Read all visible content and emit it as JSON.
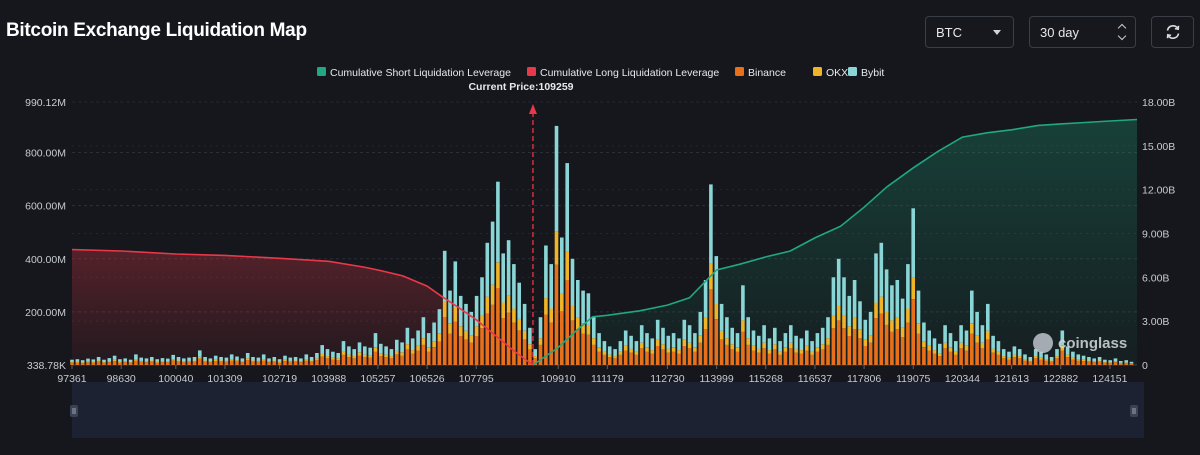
{
  "page": {
    "title": "Bitcoin Exchange Liquidation Map",
    "symbol_select": "BTC",
    "range_select": "30 day",
    "refresh_icon": "refresh-icon",
    "watermark": "coinglass"
  },
  "colors": {
    "short_cum": "#1fa883",
    "long_cum": "#e8394a",
    "binance": "#e8701a",
    "okx": "#f0b429",
    "bybit": "#8ad6d6",
    "background": "#15171c"
  },
  "chart_data": {
    "type": "bar",
    "legend_position": "top-center",
    "legend": [
      {
        "label": "Cumulative Short Liquidation Leverage",
        "color": "#1fa883"
      },
      {
        "label": "Cumulative Long Liquidation Leverage",
        "color": "#e8394a"
      },
      {
        "label": "Binance",
        "color": "#e8701a"
      },
      {
        "label": "OKX",
        "color": "#f0b429"
      },
      {
        "label": "Bybit",
        "color": "#8ad6d6"
      }
    ],
    "current_price_label": "Current Price:109259",
    "current_price": 109259,
    "x_ticks": [
      "97361",
      "98630",
      "100040",
      "101309",
      "102719",
      "103988",
      "105257",
      "106526",
      "107795",
      "109910",
      "111179",
      "112730",
      "113999",
      "115268",
      "116537",
      "117806",
      "119075",
      "120344",
      "121613",
      "122882",
      "124151"
    ],
    "x_range": [
      97361,
      124850
    ],
    "y_left_ticks": [
      "338.78K",
      "200.00M",
      "400.00M",
      "600.00M",
      "800.00M",
      "990.12M"
    ],
    "y_left_tick_values": [
      0.33878,
      200,
      400,
      600,
      800,
      990.12
    ],
    "y_left_range": [
      0,
      990.12
    ],
    "y_left_unit": "M",
    "y_right_ticks": [
      "0",
      "3.00B",
      "6.00B",
      "9.00B",
      "12.00B",
      "15.00B",
      "18.00B"
    ],
    "y_right_tick_values": [
      0,
      3,
      6,
      9,
      12,
      15,
      18
    ],
    "y_right_range": [
      0,
      18
    ],
    "y_right_unit": "B",
    "grid": true,
    "long_cumulative": [
      {
        "x": 97361,
        "y": 7.9
      },
      {
        "x": 98630,
        "y": 7.8
      },
      {
        "x": 100040,
        "y": 7.6
      },
      {
        "x": 101309,
        "y": 7.5
      },
      {
        "x": 102719,
        "y": 7.3
      },
      {
        "x": 103988,
        "y": 7.1
      },
      {
        "x": 104900,
        "y": 6.7
      },
      {
        "x": 105257,
        "y": 6.5
      },
      {
        "x": 105900,
        "y": 6.1
      },
      {
        "x": 106526,
        "y": 5.4
      },
      {
        "x": 106900,
        "y": 4.7
      },
      {
        "x": 107300,
        "y": 4.0
      },
      {
        "x": 107795,
        "y": 3.1
      },
      {
        "x": 108300,
        "y": 2.0
      },
      {
        "x": 108800,
        "y": 0.9
      },
      {
        "x": 109259,
        "y": 0
      }
    ],
    "short_cumulative": [
      {
        "x": 109259,
        "y": 0
      },
      {
        "x": 109910,
        "y": 1.2
      },
      {
        "x": 110400,
        "y": 2.4
      },
      {
        "x": 110800,
        "y": 3.3
      },
      {
        "x": 111179,
        "y": 3.4
      },
      {
        "x": 112000,
        "y": 3.7
      },
      {
        "x": 112730,
        "y": 4.1
      },
      {
        "x": 113300,
        "y": 4.6
      },
      {
        "x": 113999,
        "y": 6.5
      },
      {
        "x": 114600,
        "y": 6.9
      },
      {
        "x": 115268,
        "y": 7.4
      },
      {
        "x": 115900,
        "y": 7.8
      },
      {
        "x": 116537,
        "y": 8.7
      },
      {
        "x": 117200,
        "y": 9.5
      },
      {
        "x": 117806,
        "y": 10.8
      },
      {
        "x": 118400,
        "y": 12.2
      },
      {
        "x": 119075,
        "y": 13.5
      },
      {
        "x": 119700,
        "y": 14.6
      },
      {
        "x": 120344,
        "y": 15.6
      },
      {
        "x": 121000,
        "y": 15.9
      },
      {
        "x": 121613,
        "y": 16.1
      },
      {
        "x": 122300,
        "y": 16.4
      },
      {
        "x": 122882,
        "y": 16.5
      },
      {
        "x": 123500,
        "y": 16.6
      },
      {
        "x": 124151,
        "y": 16.7
      },
      {
        "x": 124850,
        "y": 16.8
      }
    ],
    "bar_series_names": [
      "Binance",
      "OKX",
      "Bybit"
    ],
    "bars": [
      {
        "x": 97361,
        "total": 20
      },
      {
        "x": 97500,
        "total": 22
      },
      {
        "x": 97636,
        "total": 18
      },
      {
        "x": 97773,
        "total": 24
      },
      {
        "x": 97911,
        "total": 21
      },
      {
        "x": 98048,
        "total": 30
      },
      {
        "x": 98186,
        "total": 20
      },
      {
        "x": 98323,
        "total": 26
      },
      {
        "x": 98460,
        "total": 35
      },
      {
        "x": 98598,
        "total": 22
      },
      {
        "x": 98735,
        "total": 25
      },
      {
        "x": 98873,
        "total": 20
      },
      {
        "x": 99010,
        "total": 40
      },
      {
        "x": 99148,
        "total": 28
      },
      {
        "x": 99285,
        "total": 25
      },
      {
        "x": 99422,
        "total": 30
      },
      {
        "x": 99560,
        "total": 22
      },
      {
        "x": 99697,
        "total": 26
      },
      {
        "x": 99835,
        "total": 24
      },
      {
        "x": 99972,
        "total": 38
      },
      {
        "x": 100109,
        "total": 30
      },
      {
        "x": 100247,
        "total": 25
      },
      {
        "x": 100384,
        "total": 28
      },
      {
        "x": 100522,
        "total": 30
      },
      {
        "x": 100659,
        "total": 55
      },
      {
        "x": 100797,
        "total": 30
      },
      {
        "x": 100934,
        "total": 25
      },
      {
        "x": 101071,
        "total": 35
      },
      {
        "x": 101209,
        "total": 30
      },
      {
        "x": 101346,
        "total": 28
      },
      {
        "x": 101484,
        "total": 40
      },
      {
        "x": 101621,
        "total": 32
      },
      {
        "x": 101758,
        "total": 25
      },
      {
        "x": 101896,
        "total": 45
      },
      {
        "x": 102033,
        "total": 30
      },
      {
        "x": 102171,
        "total": 28
      },
      {
        "x": 102308,
        "total": 40
      },
      {
        "x": 102446,
        "total": 25
      },
      {
        "x": 102583,
        "total": 30
      },
      {
        "x": 102720,
        "total": 22
      },
      {
        "x": 102858,
        "total": 35
      },
      {
        "x": 102995,
        "total": 28
      },
      {
        "x": 103133,
        "total": 30
      },
      {
        "x": 103270,
        "total": 25
      },
      {
        "x": 103408,
        "total": 40
      },
      {
        "x": 103545,
        "total": 30
      },
      {
        "x": 103682,
        "total": 45
      },
      {
        "x": 103820,
        "total": 75
      },
      {
        "x": 103957,
        "total": 60
      },
      {
        "x": 104095,
        "total": 50
      },
      {
        "x": 104232,
        "total": 45
      },
      {
        "x": 104370,
        "total": 90
      },
      {
        "x": 104507,
        "total": 70
      },
      {
        "x": 104644,
        "total": 60
      },
      {
        "x": 104782,
        "total": 85
      },
      {
        "x": 104919,
        "total": 70
      },
      {
        "x": 105057,
        "total": 65
      },
      {
        "x": 105194,
        "total": 120
      },
      {
        "x": 105331,
        "total": 80
      },
      {
        "x": 105469,
        "total": 70
      },
      {
        "x": 105606,
        "total": 60
      },
      {
        "x": 105744,
        "total": 95
      },
      {
        "x": 105881,
        "total": 85
      },
      {
        "x": 106019,
        "total": 140
      },
      {
        "x": 106156,
        "total": 100
      },
      {
        "x": 106293,
        "total": 130
      },
      {
        "x": 106431,
        "total": 180
      },
      {
        "x": 106568,
        "total": 120
      },
      {
        "x": 106706,
        "total": 160
      },
      {
        "x": 106843,
        "total": 210
      },
      {
        "x": 106981,
        "total": 430
      },
      {
        "x": 107118,
        "total": 280
      },
      {
        "x": 107255,
        "total": 390
      },
      {
        "x": 107393,
        "total": 260
      },
      {
        "x": 107530,
        "total": 230
      },
      {
        "x": 107668,
        "total": 200
      },
      {
        "x": 107805,
        "total": 260
      },
      {
        "x": 107943,
        "total": 330
      },
      {
        "x": 108080,
        "total": 460
      },
      {
        "x": 108217,
        "total": 540
      },
      {
        "x": 108355,
        "total": 690
      },
      {
        "x": 108492,
        "total": 420
      },
      {
        "x": 108630,
        "total": 470
      },
      {
        "x": 108767,
        "total": 380
      },
      {
        "x": 108905,
        "total": 310
      },
      {
        "x": 109042,
        "total": 230
      },
      {
        "x": 109180,
        "total": 140
      },
      {
        "x": 109317,
        "total": 60
      },
      {
        "x": 109454,
        "total": 180
      },
      {
        "x": 109592,
        "total": 450
      },
      {
        "x": 109729,
        "total": 380
      },
      {
        "x": 109867,
        "total": 900
      },
      {
        "x": 110004,
        "total": 480
      },
      {
        "x": 110142,
        "total": 760
      },
      {
        "x": 110279,
        "total": 400
      },
      {
        "x": 110417,
        "total": 320
      },
      {
        "x": 110554,
        "total": 280
      },
      {
        "x": 110691,
        "total": 270
      },
      {
        "x": 110829,
        "total": 180
      },
      {
        "x": 110966,
        "total": 120
      },
      {
        "x": 111104,
        "total": 90
      },
      {
        "x": 111241,
        "total": 70
      },
      {
        "x": 111379,
        "total": 60
      },
      {
        "x": 111516,
        "total": 90
      },
      {
        "x": 111653,
        "total": 130
      },
      {
        "x": 111791,
        "total": 110
      },
      {
        "x": 111928,
        "total": 90
      },
      {
        "x": 112066,
        "total": 150
      },
      {
        "x": 112203,
        "total": 120
      },
      {
        "x": 112340,
        "total": 100
      },
      {
        "x": 112478,
        "total": 170
      },
      {
        "x": 112615,
        "total": 140
      },
      {
        "x": 112753,
        "total": 110
      },
      {
        "x": 112890,
        "total": 120
      },
      {
        "x": 113028,
        "total": 100
      },
      {
        "x": 113165,
        "total": 170
      },
      {
        "x": 113302,
        "total": 150
      },
      {
        "x": 113440,
        "total": 120
      },
      {
        "x": 113577,
        "total": 200
      },
      {
        "x": 113715,
        "total": 320
      },
      {
        "x": 113852,
        "total": 680
      },
      {
        "x": 113990,
        "total": 410
      },
      {
        "x": 114127,
        "total": 230
      },
      {
        "x": 114264,
        "total": 180
      },
      {
        "x": 114402,
        "total": 140
      },
      {
        "x": 114539,
        "total": 120
      },
      {
        "x": 114677,
        "total": 300
      },
      {
        "x": 114814,
        "total": 180
      },
      {
        "x": 114951,
        "total": 130
      },
      {
        "x": 115089,
        "total": 110
      },
      {
        "x": 115226,
        "total": 150
      },
      {
        "x": 115364,
        "total": 100
      },
      {
        "x": 115501,
        "total": 140
      },
      {
        "x": 115639,
        "total": 90
      },
      {
        "x": 115776,
        "total": 120
      },
      {
        "x": 115913,
        "total": 150
      },
      {
        "x": 116051,
        "total": 110
      },
      {
        "x": 116188,
        "total": 100
      },
      {
        "x": 116326,
        "total": 130
      },
      {
        "x": 116463,
        "total": 90
      },
      {
        "x": 116600,
        "total": 120
      },
      {
        "x": 116738,
        "total": 140
      },
      {
        "x": 116875,
        "total": 180
      },
      {
        "x": 117013,
        "total": 330
      },
      {
        "x": 117150,
        "total": 400
      },
      {
        "x": 117288,
        "total": 330
      },
      {
        "x": 117425,
        "total": 260
      },
      {
        "x": 117562,
        "total": 320
      },
      {
        "x": 117700,
        "total": 240
      },
      {
        "x": 117837,
        "total": 170
      },
      {
        "x": 117975,
        "total": 200
      },
      {
        "x": 118112,
        "total": 420
      },
      {
        "x": 118249,
        "total": 460
      },
      {
        "x": 118387,
        "total": 360
      },
      {
        "x": 118524,
        "total": 300
      },
      {
        "x": 118662,
        "total": 320
      },
      {
        "x": 118799,
        "total": 250
      },
      {
        "x": 118937,
        "total": 380
      },
      {
        "x": 119074,
        "total": 590
      },
      {
        "x": 119211,
        "total": 280
      },
      {
        "x": 119349,
        "total": 160
      },
      {
        "x": 119486,
        "total": 130
      },
      {
        "x": 119624,
        "total": 100
      },
      {
        "x": 119761,
        "total": 80
      },
      {
        "x": 119898,
        "total": 150
      },
      {
        "x": 120036,
        "total": 120
      },
      {
        "x": 120173,
        "total": 90
      },
      {
        "x": 120311,
        "total": 150
      },
      {
        "x": 120448,
        "total": 130
      },
      {
        "x": 120586,
        "total": 280
      },
      {
        "x": 120723,
        "total": 200
      },
      {
        "x": 120860,
        "total": 150
      },
      {
        "x": 120998,
        "total": 230
      },
      {
        "x": 121135,
        "total": 110
      },
      {
        "x": 121273,
        "total": 90
      },
      {
        "x": 121410,
        "total": 60
      },
      {
        "x": 121547,
        "total": 50
      },
      {
        "x": 121685,
        "total": 70
      },
      {
        "x": 121822,
        "total": 60
      },
      {
        "x": 121960,
        "total": 40
      },
      {
        "x": 122097,
        "total": 30
      },
      {
        "x": 122235,
        "total": 60
      },
      {
        "x": 122372,
        "total": 50
      },
      {
        "x": 122509,
        "total": 40
      },
      {
        "x": 122647,
        "total": 30
      },
      {
        "x": 122784,
        "total": 60
      },
      {
        "x": 122922,
        "total": 130
      },
      {
        "x": 123059,
        "total": 70
      },
      {
        "x": 123196,
        "total": 50
      },
      {
        "x": 123334,
        "total": 40
      },
      {
        "x": 123471,
        "total": 35
      },
      {
        "x": 123609,
        "total": 30
      },
      {
        "x": 123746,
        "total": 25
      },
      {
        "x": 123884,
        "total": 30
      },
      {
        "x": 124021,
        "total": 20
      },
      {
        "x": 124158,
        "total": 18
      },
      {
        "x": 124296,
        "total": 25
      },
      {
        "x": 124433,
        "total": 15
      },
      {
        "x": 124571,
        "total": 18
      },
      {
        "x": 124708,
        "total": 12
      }
    ]
  }
}
